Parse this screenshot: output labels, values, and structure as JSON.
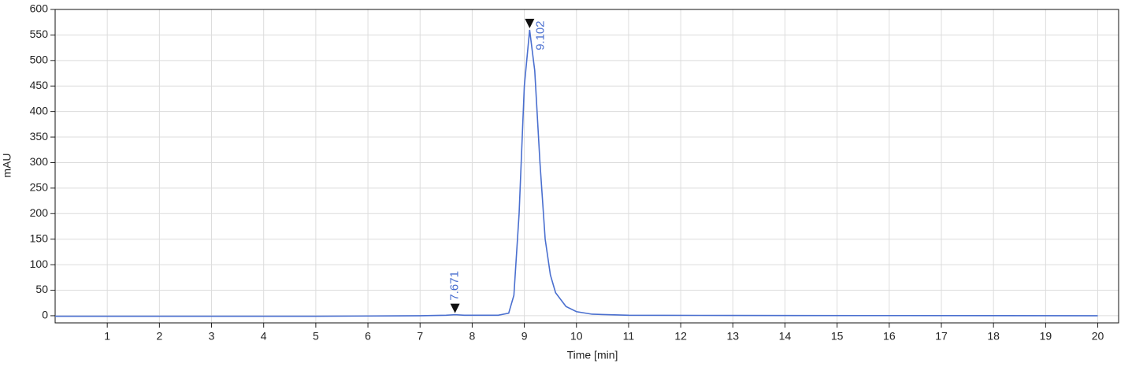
{
  "chart_data": {
    "type": "line",
    "x_label": "Time [min]",
    "y_label": "mAU",
    "xlim": [
      0,
      20.4
    ],
    "ylim": [
      -14,
      600
    ],
    "xticks": [
      1,
      2,
      3,
      4,
      5,
      6,
      7,
      8,
      9,
      10,
      11,
      12,
      13,
      14,
      15,
      16,
      17,
      18,
      19,
      20
    ],
    "yticks": [
      0,
      50,
      100,
      150,
      200,
      250,
      300,
      350,
      400,
      450,
      500,
      550,
      600
    ],
    "grid": true,
    "series": [
      {
        "color": "#4a6fcf",
        "x": [
          0,
          1,
          2,
          3,
          4,
          5,
          6,
          7,
          7.5,
          7.671,
          7.85,
          8.5,
          8.7,
          8.8,
          8.9,
          9.0,
          9.102,
          9.2,
          9.3,
          9.4,
          9.5,
          9.6,
          9.8,
          10.0,
          10.3,
          11,
          13,
          20
        ],
        "values": [
          -1,
          -1,
          -1,
          -1,
          -1,
          -1,
          -0.5,
          0,
          1,
          2,
          1,
          1,
          5,
          40,
          200,
          450,
          560,
          480,
          300,
          150,
          80,
          45,
          18,
          8,
          3,
          1,
          0.5,
          0
        ]
      }
    ],
    "peaks": [
      {
        "time": 7.671,
        "height": 2
      },
      {
        "time": 9.102,
        "height": 560
      }
    ]
  }
}
